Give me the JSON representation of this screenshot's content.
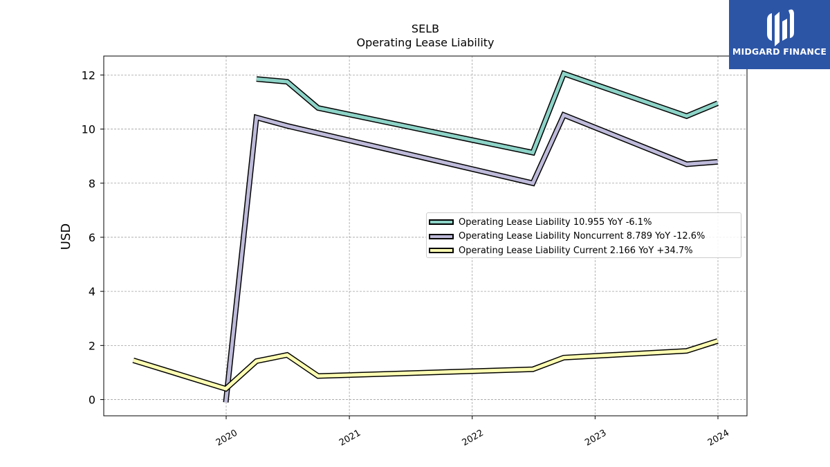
{
  "chart_data": {
    "type": "line",
    "title": "SELB",
    "subtitle": "Operating Lease Liability",
    "ylabel": "USD",
    "xlabel": "",
    "ylim": [
      -0.6,
      12.7
    ],
    "yticks": [
      0,
      2,
      4,
      6,
      8,
      10,
      12
    ],
    "xticks": [
      "2020",
      "2021",
      "2022",
      "2023",
      "2024"
    ],
    "grid": true,
    "legend_position": "center-right",
    "series": [
      {
        "name": "Operating Lease Liability  10.955 YoY -6.1%",
        "color": "#8dd3c7",
        "points": [
          [
            "2020-03-31",
            11.85
          ],
          [
            "2020-06-30",
            11.75
          ],
          [
            "2020-09-30",
            10.78
          ],
          [
            "2022-06-30",
            9.13
          ],
          [
            "2022-09-30",
            12.05
          ],
          [
            "2023-09-30",
            10.48
          ],
          [
            "2023-12-31",
            10.955
          ]
        ]
      },
      {
        "name": "Operating Lease Liability Noncurrent  8.789 YoY -12.6%",
        "color": "#bebada",
        "points": [
          [
            "2019-12-31",
            -0.1
          ],
          [
            "2020-03-31",
            10.43
          ],
          [
            "2020-06-30",
            10.12
          ],
          [
            "2022-06-30",
            8.0
          ],
          [
            "2022-09-30",
            10.52
          ],
          [
            "2023-09-30",
            8.7
          ],
          [
            "2023-12-31",
            8.789
          ]
        ]
      },
      {
        "name": "Operating Lease Liability Current  2.166 YoY +34.7%",
        "color": "#ffffb3",
        "points": [
          [
            "2019-03-31",
            1.45
          ],
          [
            "2019-12-31",
            0.4
          ],
          [
            "2020-03-31",
            1.42
          ],
          [
            "2020-06-30",
            1.65
          ],
          [
            "2020-09-30",
            0.87
          ],
          [
            "2022-06-30",
            1.12
          ],
          [
            "2022-09-30",
            1.55
          ],
          [
            "2023-09-30",
            1.8
          ],
          [
            "2023-12-31",
            2.166
          ]
        ]
      }
    ]
  },
  "logo": {
    "text": "MIDGARD FINANCE",
    "background": "#2c55a6"
  }
}
